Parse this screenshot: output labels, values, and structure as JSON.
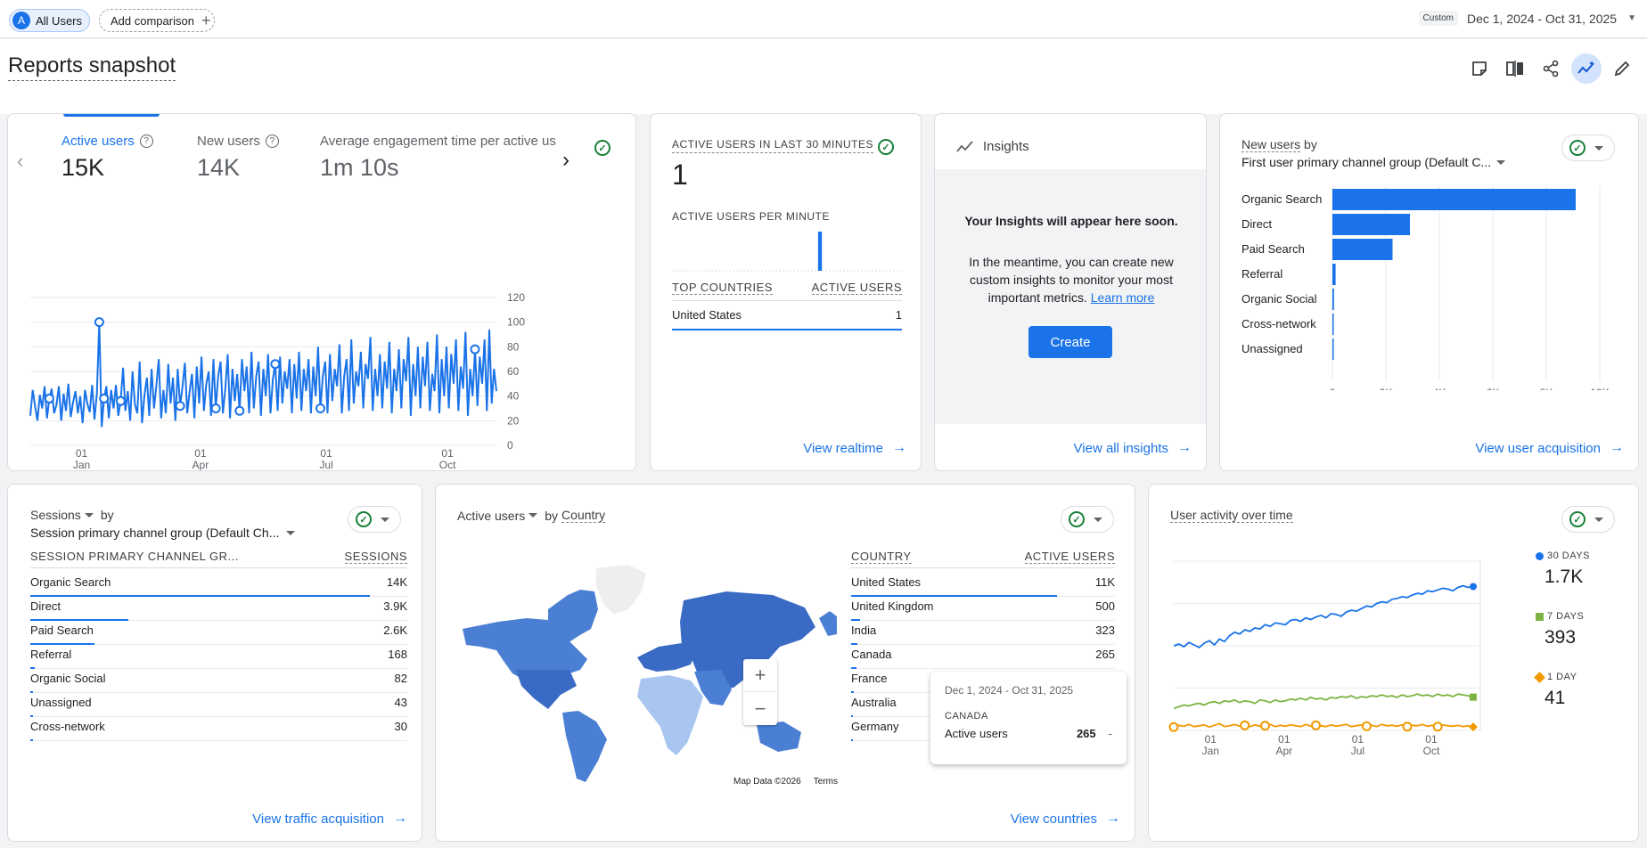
{
  "topbar": {
    "segment": {
      "letter": "A",
      "label": "All Users"
    },
    "add_comparison": "Add comparison",
    "date_tag": "Custom",
    "date_range": "Dec 1, 2024 - Oct 31, 2025"
  },
  "page_title": "Reports snapshot",
  "toolbar_icons": [
    "customize-report-icon",
    "compare-icon",
    "share-icon",
    "insights-icon",
    "edit-icon"
  ],
  "overview": {
    "metrics": [
      {
        "label": "Active users",
        "value": "15K"
      },
      {
        "label": "New users",
        "value": "14K"
      },
      {
        "label": "Average engagement time per active us",
        "value": "1m 10s"
      }
    ],
    "chart_data": {
      "type": "line",
      "ylim": [
        0,
        120
      ],
      "yticks": [
        "0",
        "20",
        "40",
        "60",
        "80",
        "100",
        "120"
      ],
      "xticks": [
        {
          "day": "01",
          "month": "Jan"
        },
        {
          "day": "01",
          "month": "Apr"
        },
        {
          "day": "01",
          "month": "Jul"
        },
        {
          "day": "01",
          "month": "Oct"
        }
      ],
      "series": [
        {
          "values": [
            24,
            45,
            32,
            20,
            41,
            30,
            48,
            22,
            38,
            46,
            26,
            33,
            48,
            20,
            42,
            28,
            50,
            23,
            35,
            44,
            26,
            40,
            18,
            45,
            34,
            27,
            49,
            21,
            42,
            100,
            15,
            38,
            48,
            22,
            45,
            30,
            49,
            24,
            36,
            63,
            28,
            44,
            20,
            60,
            33,
            26,
            68,
            18,
            41,
            55,
            24,
            62,
            30,
            48,
            70,
            22,
            45,
            26,
            66,
            34,
            55,
            20,
            62,
            32,
            48,
            67,
            26,
            44,
            58,
            22,
            64,
            34,
            72,
            28,
            50,
            60,
            24,
            70,
            30,
            56,
            68,
            26,
            46,
            74,
            22,
            62,
            36,
            58,
            28,
            70,
            44,
            64,
            26,
            76,
            30,
            56,
            68,
            24,
            62,
            40,
            74,
            26,
            54,
            66,
            28,
            72,
            34,
            60,
            46,
            70,
            26,
            66,
            38,
            76,
            28,
            62,
            44,
            70,
            26,
            64,
            40,
            80,
            30,
            56,
            68,
            26,
            74,
            36,
            62,
            48,
            82,
            26,
            56,
            70,
            28,
            86,
            34,
            60,
            48,
            76,
            30,
            66,
            54,
            88,
            28,
            62,
            40,
            74,
            30,
            68,
            46,
            84,
            26,
            62,
            44,
            78,
            30,
            70,
            52,
            88,
            24,
            66,
            40,
            80,
            30,
            72,
            48,
            84,
            28,
            58,
            44,
            90,
            26,
            70,
            40,
            80,
            30,
            74,
            50,
            86,
            28,
            64,
            46,
            92,
            24,
            62,
            40,
            78,
            32,
            72,
            50,
            86,
            28,
            94,
            34,
            62,
            44
          ]
        }
      ]
    }
  },
  "realtime": {
    "title": "ACTIVE USERS IN LAST 30 MINUTES",
    "value": "1",
    "per_minute_label": "ACTIVE USERS PER MINUTE",
    "per_minute_values": [
      0,
      0,
      0,
      0,
      0,
      0,
      0,
      0,
      0,
      0,
      0,
      0,
      0,
      0,
      0,
      0,
      0,
      0,
      0,
      0,
      0,
      0,
      0,
      0,
      0,
      0,
      0,
      0,
      0,
      0,
      0,
      0,
      0,
      0,
      0,
      0,
      0,
      0,
      1,
      0,
      0,
      0,
      0,
      0,
      0,
      0,
      0,
      0,
      0,
      0,
      0,
      0,
      0,
      0,
      0,
      0,
      0,
      0,
      0,
      0
    ],
    "col_country": "TOP COUNTRIES",
    "col_users": "ACTIVE USERS",
    "rows": [
      {
        "country": "United States",
        "users": "1"
      }
    ],
    "link": "View realtime"
  },
  "insights": {
    "title": "Insights",
    "heading": "Your Insights will appear here soon.",
    "body": "In the meantime, you can create new custom insights to monitor your most important metrics.",
    "learn_more": "Learn more",
    "create_button": "Create",
    "link": "View all insights"
  },
  "new_users_card": {
    "title": "New users",
    "by": "by",
    "dimension": "First user primary channel group (Default C...",
    "chart_data": {
      "type": "bar",
      "categories": [
        "Organic Search",
        "Direct",
        "Paid Search",
        "Referral",
        "Organic Social",
        "Cross-network",
        "Unassigned"
      ],
      "values": [
        9100,
        2900,
        2250,
        120,
        60,
        30,
        20
      ],
      "xlim": [
        0,
        10000
      ],
      "xticks": [
        "0",
        "2K",
        "4K",
        "6K",
        "8K",
        "10K"
      ]
    },
    "link": "View user acquisition"
  },
  "sessions_card": {
    "title": "Sessions",
    "by": "by",
    "dimension": "Session primary channel group (Default Ch...",
    "col_left": "SESSION PRIMARY CHANNEL GR...",
    "col_right": "SESSIONS",
    "rows": [
      {
        "label": "Organic Search",
        "value": "14K",
        "share": 0.9
      },
      {
        "label": "Direct",
        "value": "3.9K",
        "share": 0.26
      },
      {
        "label": "Paid Search",
        "value": "2.6K",
        "share": 0.17
      },
      {
        "label": "Referral",
        "value": "168",
        "share": 0.012
      },
      {
        "label": "Organic Social",
        "value": "82",
        "share": 0.006
      },
      {
        "label": "Unassigned",
        "value": "43",
        "share": 0.003
      },
      {
        "label": "Cross-network",
        "value": "30",
        "share": 0.002
      }
    ],
    "link": "View traffic acquisition"
  },
  "country_card": {
    "metric": "Active users",
    "by": "by",
    "dimension": "Country",
    "col_left": "COUNTRY",
    "col_right": "ACTIVE USERS",
    "rows": [
      {
        "label": "United States",
        "value": "11K",
        "share": 0.78
      },
      {
        "label": "United Kingdom",
        "value": "500",
        "share": 0.035
      },
      {
        "label": "India",
        "value": "323",
        "share": 0.023
      },
      {
        "label": "Canada",
        "value": "265",
        "share": 0.019
      },
      {
        "label": "France",
        "value": "",
        "share": 0.01
      },
      {
        "label": "Australia",
        "value": "",
        "share": 0.008
      },
      {
        "label": "Germany",
        "value": "",
        "share": 0.006
      }
    ],
    "map_attrib": "Map Data ©2026",
    "map_terms": "Terms",
    "zoom_in": "+",
    "zoom_out": "−",
    "tooltip": {
      "date": "Dec 1, 2024 - Oct 31, 2025",
      "country": "CANADA",
      "label": "Active users",
      "value": "265",
      "dash": "-"
    },
    "link": "View countries"
  },
  "user_activity": {
    "title": "User activity over time",
    "chart_data": {
      "type": "line",
      "ylim": [
        0,
        2000
      ],
      "yticks": [
        "0",
        "500",
        "1K",
        "1.5K",
        "2K"
      ],
      "xticks": [
        {
          "day": "01",
          "month": "Jan"
        },
        {
          "day": "01",
          "month": "Apr"
        },
        {
          "day": "01",
          "month": "Jul"
        },
        {
          "day": "01",
          "month": "Oct"
        }
      ],
      "series": [
        {
          "name": "30 DAYS",
          "color": "#1a73e8",
          "values": [
            1000,
            1020,
            990,
            1040,
            1010,
            980,
            1030,
            1060,
            1010,
            1080,
            1050,
            1120,
            1160,
            1140,
            1190,
            1170,
            1210,
            1200,
            1250,
            1230,
            1270,
            1260,
            1250,
            1300,
            1310,
            1290,
            1330,
            1310,
            1340,
            1360,
            1330,
            1380,
            1370,
            1350,
            1400,
            1420,
            1410,
            1440,
            1470,
            1460,
            1500,
            1520,
            1510,
            1550,
            1560,
            1580,
            1570,
            1600,
            1620,
            1610,
            1650,
            1640,
            1660,
            1680,
            1670,
            1650,
            1690,
            1710,
            1690,
            1700
          ]
        },
        {
          "name": "7 DAYS",
          "color": "#7cb342",
          "values": [
            260,
            280,
            300,
            290,
            310,
            320,
            300,
            330,
            340,
            320,
            350,
            340,
            360,
            330,
            350,
            340,
            320,
            360,
            350,
            330,
            360,
            340,
            350,
            370,
            360,
            380,
            360,
            390,
            370,
            380,
            360,
            390,
            380,
            400,
            390,
            410,
            380,
            400,
            390,
            410,
            400,
            420,
            400,
            410,
            390,
            420,
            400,
            410,
            430,
            410,
            420,
            400,
            430,
            410,
            420,
            400,
            430,
            420,
            410,
            393
          ]
        },
        {
          "name": "1 DAY",
          "color": "#f29900",
          "values": [
            40,
            60,
            50,
            70,
            45,
            55,
            65,
            40,
            60,
            80,
            45,
            55,
            70,
            50,
            60,
            45,
            65,
            50,
            55,
            70,
            45,
            60,
            50,
            65,
            55,
            45,
            70,
            50,
            60,
            55,
            45,
            65,
            50,
            60,
            70,
            45,
            55,
            65,
            50,
            60,
            45,
            70,
            55,
            60,
            50,
            65,
            45,
            60,
            55,
            70,
            50,
            60,
            45,
            65,
            55,
            50,
            60,
            45,
            55,
            41
          ]
        }
      ]
    },
    "legend": [
      {
        "label": "30 DAYS",
        "value": "1.7K"
      },
      {
        "label": "7 DAYS",
        "value": "393"
      },
      {
        "label": "1 DAY",
        "value": "41"
      }
    ]
  }
}
